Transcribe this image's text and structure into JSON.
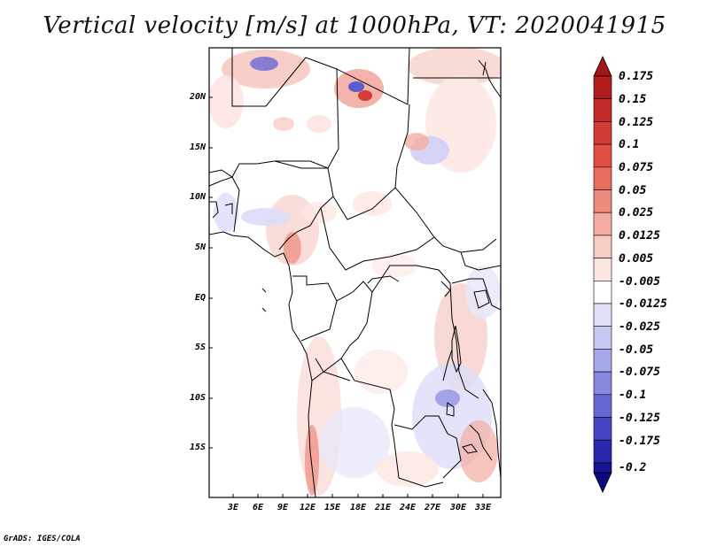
{
  "title": "Vertical velocity [m/s] at 1000hPa, VT: 2020041915",
  "credit": "GrADS: IGES/COLA",
  "map": {
    "lat_labels": [
      "20N",
      "15N",
      "10N",
      "5N",
      "EQ",
      "5S",
      "10S",
      "15S"
    ],
    "lon_labels": [
      "3E",
      "6E",
      "9E",
      "12E",
      "15E",
      "18E",
      "21E",
      "24E",
      "27E",
      "30E",
      "33E"
    ],
    "lon_extent": [
      "0E",
      "35E"
    ],
    "lat_extent": [
      "20S",
      "25N"
    ]
  },
  "colorbar": {
    "labels": [
      "0.175",
      "0.15",
      "0.125",
      "0.1",
      "0.075",
      "0.05",
      "0.025",
      "0.0125",
      "0.005",
      "-0.005",
      "-0.0125",
      "-0.025",
      "-0.05",
      "-0.075",
      "-0.1",
      "-0.125",
      "-0.175",
      "-0.2"
    ],
    "colors": [
      "#b01c1c",
      "#c42a28",
      "#d33b35",
      "#e05046",
      "#e86c5e",
      "#ee8a7e",
      "#f4aca2",
      "#f8cdc6",
      "#fce6e2",
      "#ffffff",
      "#e0e0fa",
      "#c8c8f4",
      "#a8a8ec",
      "#8888e0",
      "#6666d4",
      "#4646c4",
      "#2828ac",
      "#141494",
      "#0a0a7a"
    ]
  }
}
